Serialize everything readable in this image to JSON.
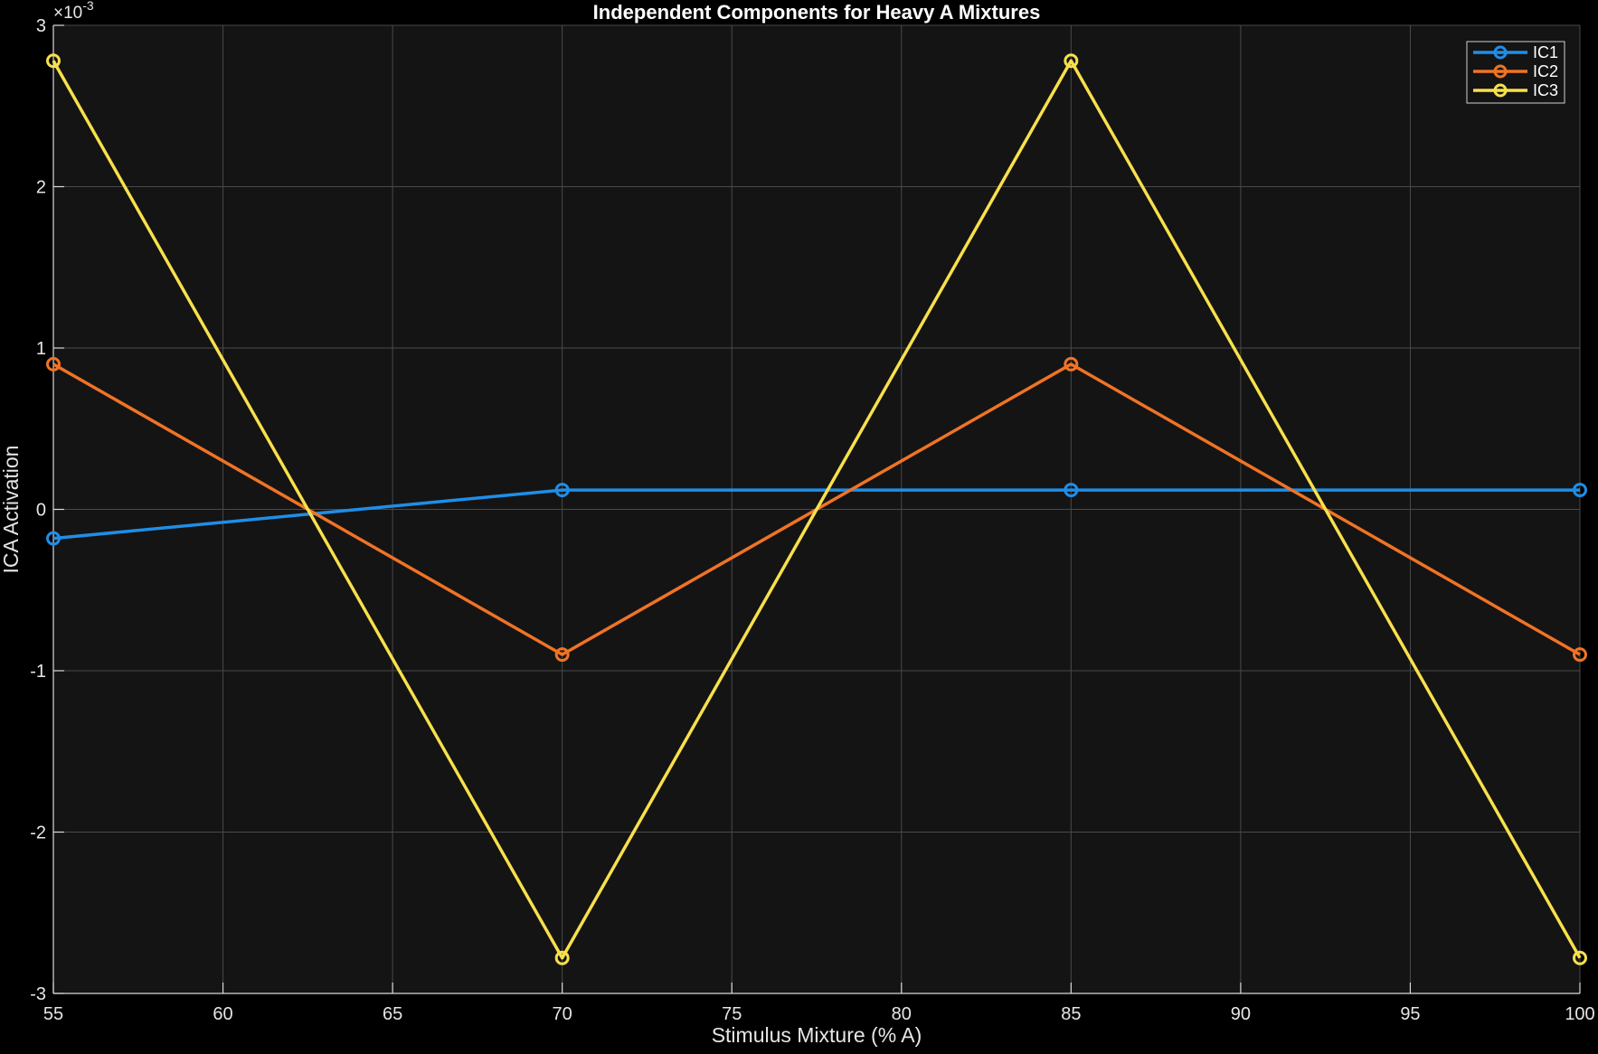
{
  "chart_data": {
    "type": "line",
    "title": "Independent Components for Heavy A Mixtures",
    "xlabel": "Stimulus Mixture (% A)",
    "ylabel": "ICA Activation",
    "y_exponent": "-3",
    "y_exponent_prefix": "×10",
    "xlim": [
      55,
      100
    ],
    "ylim": [
      -3,
      3
    ],
    "xticks": [
      55,
      60,
      65,
      70,
      75,
      80,
      85,
      90,
      95,
      100
    ],
    "yticks": [
      -3,
      -2,
      -1,
      0,
      1,
      2,
      3
    ],
    "grid": true,
    "legend_location": "top-right",
    "background_color": "#141414",
    "figure_color": "#000000",
    "grid_color": "#4a4a4a",
    "axis_color": "#d9d9d9",
    "x": [
      55,
      70,
      85,
      100
    ],
    "series": [
      {
        "name": "IC1",
        "color": "#1f8ee8",
        "values": [
          -0.18,
          0.12,
          0.12,
          0.12
        ]
      },
      {
        "name": "IC2",
        "color": "#f07325",
        "values": [
          0.9,
          -0.9,
          0.9,
          -0.9
        ]
      },
      {
        "name": "IC3",
        "color": "#f8e04b",
        "values": [
          2.78,
          -2.78,
          2.78,
          -2.78
        ]
      }
    ]
  }
}
